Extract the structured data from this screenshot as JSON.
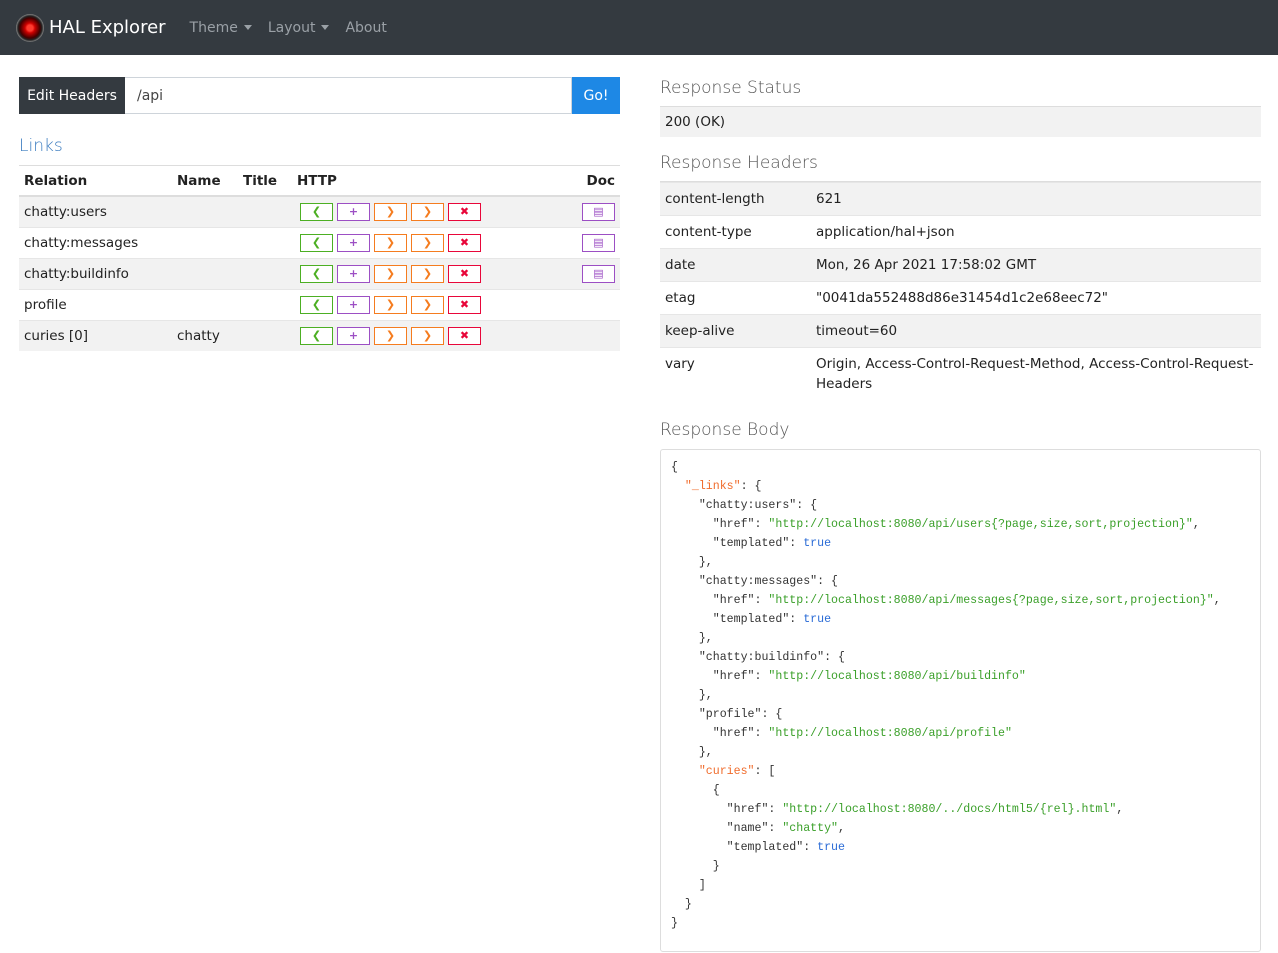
{
  "nav": {
    "brand": "HAL Explorer",
    "items": [
      "Theme",
      "Layout",
      "About"
    ]
  },
  "request": {
    "edit_headers": "Edit Headers",
    "url": "/api",
    "go": "Go!"
  },
  "links": {
    "title": "Links",
    "columns": [
      "Relation",
      "Name",
      "Title",
      "HTTP",
      "Doc"
    ],
    "rows": [
      {
        "relation": "chatty:users",
        "name": "",
        "title": "",
        "doc": true
      },
      {
        "relation": "chatty:messages",
        "name": "",
        "title": "",
        "doc": true
      },
      {
        "relation": "chatty:buildinfo",
        "name": "",
        "title": "",
        "doc": true
      },
      {
        "relation": "profile",
        "name": "",
        "title": "",
        "doc": false
      },
      {
        "relation": "curies [0]",
        "name": "chatty",
        "title": "",
        "doc": false
      }
    ],
    "http_buttons": [
      {
        "icon": "chevron-left-icon",
        "glyph": "❮",
        "color": "#4caf23"
      },
      {
        "icon": "plus-icon",
        "glyph": "+",
        "color": "#9c4fc4"
      },
      {
        "icon": "chevron-right-icon",
        "glyph": "❯",
        "color": "#f57c1f"
      },
      {
        "icon": "chevron-right-icon",
        "glyph": "❯",
        "color": "#f57c1f"
      },
      {
        "icon": "x-icon",
        "glyph": "✖",
        "color": "#e8073a"
      }
    ],
    "doc_button": {
      "icon": "book-icon",
      "glyph": "▤",
      "color": "#9c4fc4"
    }
  },
  "response": {
    "status_title": "Response Status",
    "status": "200 (OK)",
    "headers_title": "Response Headers",
    "headers": [
      [
        "content-length",
        "621"
      ],
      [
        "content-type",
        "application/hal+json"
      ],
      [
        "date",
        "Mon, 26 Apr 2021 17:58:02 GMT"
      ],
      [
        "etag",
        "\"0041da552488d86e31454d1c2e68eec72\""
      ],
      [
        "keep-alive",
        "timeout=60"
      ],
      [
        "vary",
        "Origin, Access-Control-Request-Method, Access-Control-Request-Headers"
      ]
    ],
    "body_title": "Response Body",
    "body_lines": [
      [
        0,
        [
          [
            "k",
            "{"
          ]
        ]
      ],
      [
        1,
        [
          [
            "ko",
            "\"_links\""
          ],
          [
            "k",
            ": {"
          ]
        ]
      ],
      [
        2,
        [
          [
            "k",
            "\"chatty:users\": {"
          ]
        ]
      ],
      [
        3,
        [
          [
            "k",
            "\"href\": "
          ],
          [
            "s",
            "\"http://localhost:8080/api/users{?page,size,sort,projection}\""
          ],
          [
            "k",
            ","
          ]
        ]
      ],
      [
        3,
        [
          [
            "k",
            "\"templated\": "
          ],
          [
            "b",
            "true"
          ]
        ]
      ],
      [
        2,
        [
          [
            "k",
            "},"
          ]
        ]
      ],
      [
        2,
        [
          [
            "k",
            "\"chatty:messages\": {"
          ]
        ]
      ],
      [
        3,
        [
          [
            "k",
            "\"href\": "
          ],
          [
            "s",
            "\"http://localhost:8080/api/messages{?page,size,sort,projection}\""
          ],
          [
            "k",
            ","
          ]
        ]
      ],
      [
        3,
        [
          [
            "k",
            "\"templated\": "
          ],
          [
            "b",
            "true"
          ]
        ]
      ],
      [
        2,
        [
          [
            "k",
            "},"
          ]
        ]
      ],
      [
        2,
        [
          [
            "k",
            "\"chatty:buildinfo\": {"
          ]
        ]
      ],
      [
        3,
        [
          [
            "k",
            "\"href\": "
          ],
          [
            "s",
            "\"http://localhost:8080/api/buildinfo\""
          ]
        ]
      ],
      [
        2,
        [
          [
            "k",
            "},"
          ]
        ]
      ],
      [
        2,
        [
          [
            "k",
            "\"profile\": {"
          ]
        ]
      ],
      [
        3,
        [
          [
            "k",
            "\"href\": "
          ],
          [
            "s",
            "\"http://localhost:8080/api/profile\""
          ]
        ]
      ],
      [
        2,
        [
          [
            "k",
            "},"
          ]
        ]
      ],
      [
        2,
        [
          [
            "ko",
            "\"curies\""
          ],
          [
            "k",
            ": ["
          ]
        ]
      ],
      [
        3,
        [
          [
            "k",
            "{"
          ]
        ]
      ],
      [
        4,
        [
          [
            "k",
            "\"href\": "
          ],
          [
            "s",
            "\"http://localhost:8080/../docs/html5/{rel}.html\""
          ],
          [
            "k",
            ","
          ]
        ]
      ],
      [
        4,
        [
          [
            "k",
            "\"name\": "
          ],
          [
            "s",
            "\"chatty\""
          ],
          [
            "k",
            ","
          ]
        ]
      ],
      [
        4,
        [
          [
            "k",
            "\"templated\": "
          ],
          [
            "b",
            "true"
          ]
        ]
      ],
      [
        3,
        [
          [
            "k",
            "}"
          ]
        ]
      ],
      [
        2,
        [
          [
            "k",
            "]"
          ]
        ]
      ],
      [
        1,
        [
          [
            "k",
            "}"
          ]
        ]
      ],
      [
        0,
        [
          [
            "k",
            "}"
          ]
        ]
      ]
    ]
  }
}
